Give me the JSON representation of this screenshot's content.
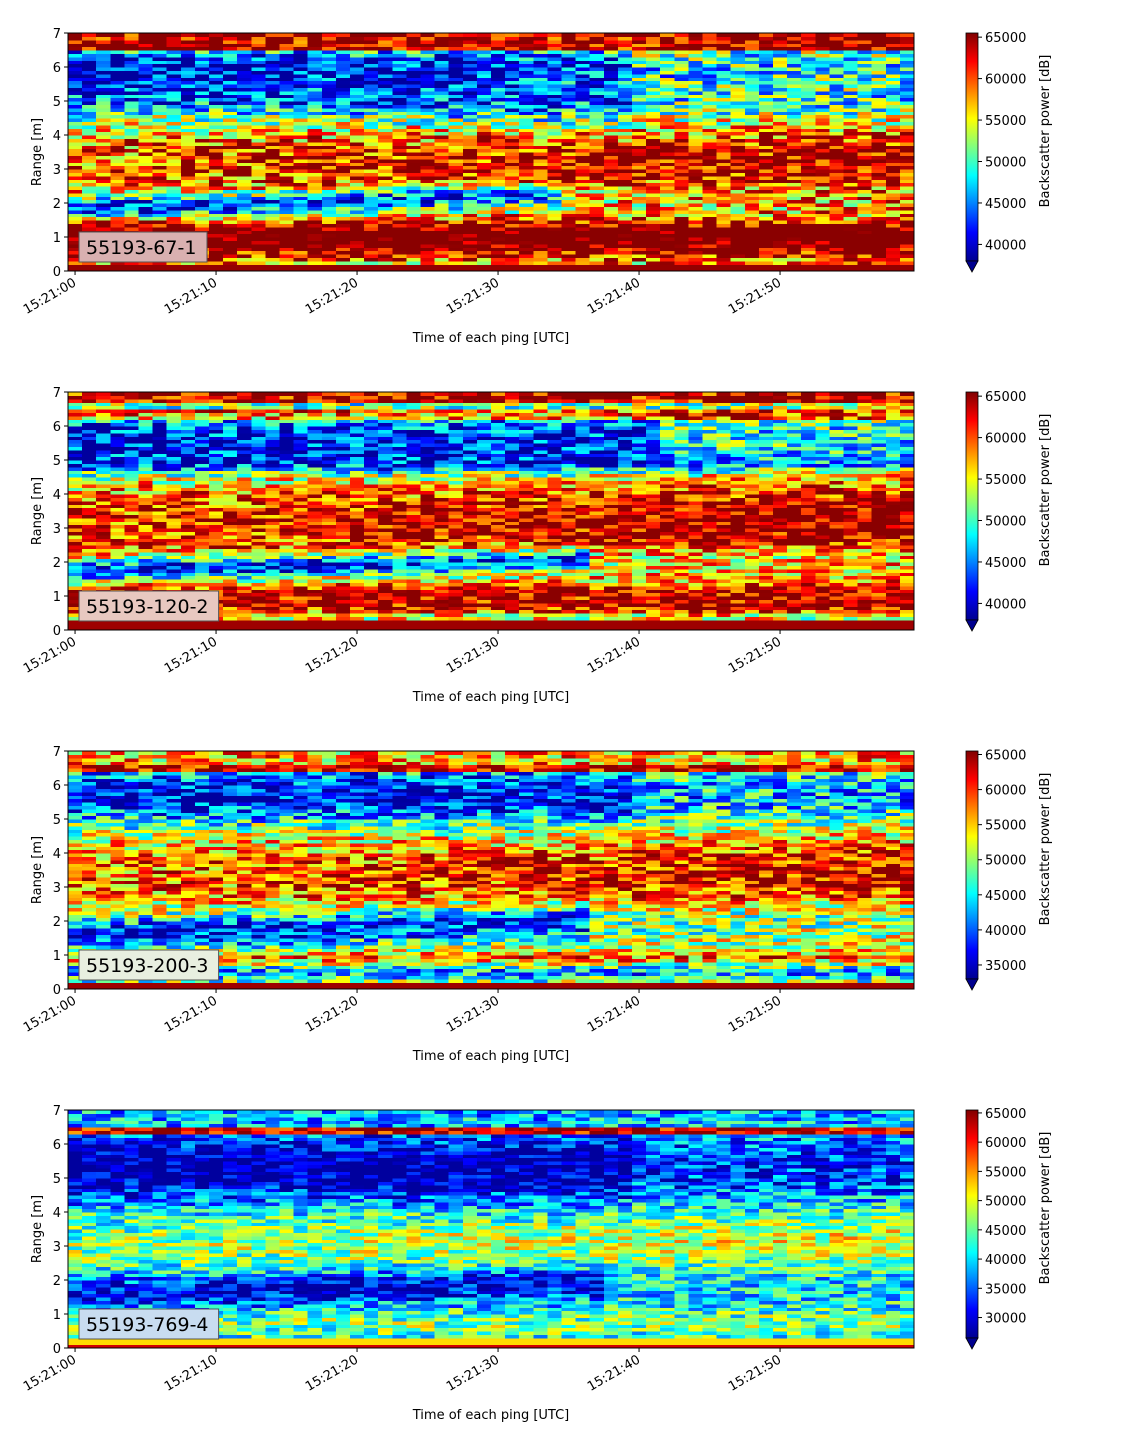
{
  "figure": {
    "ylabel": "Range [m]",
    "xlabel": "Time of each ping [UTC]",
    "colorbar_label": "Backscatter power [dB]",
    "colormap": "jet",
    "xtick_labels": [
      "15:21:00",
      "15:21:10",
      "15:21:20",
      "15:21:30",
      "15:21:40",
      "15:21:50"
    ]
  },
  "chart_data": [
    {
      "type": "heatmap",
      "annotation": "55193-67-1",
      "annotation_box_color": "#d9b0b0",
      "ylim": [
        0,
        7
      ],
      "yticks": [
        0,
        1,
        2,
        3,
        4,
        5,
        6,
        7
      ],
      "xlim_seconds": [
        -0.5,
        59.5
      ],
      "xticks": [
        "15:21:00",
        "15:21:10",
        "15:21:20",
        "15:21:30",
        "15:21:40",
        "15:21:50"
      ],
      "colorbar_range": [
        38000,
        65500
      ],
      "colorbar_ticks": [
        40000,
        45000,
        50000,
        55000,
        60000,
        65000
      ],
      "colorbar_extend": "min",
      "grid": false
    },
    {
      "type": "heatmap",
      "annotation": "55193-120-2",
      "annotation_box_color": "#e8c8c0",
      "ylim": [
        0,
        7
      ],
      "yticks": [
        0,
        1,
        2,
        3,
        4,
        5,
        6,
        7
      ],
      "xlim_seconds": [
        -0.5,
        59.5
      ],
      "xticks": [
        "15:21:00",
        "15:21:10",
        "15:21:20",
        "15:21:30",
        "15:21:40",
        "15:21:50"
      ],
      "colorbar_range": [
        38000,
        65500
      ],
      "colorbar_ticks": [
        40000,
        45000,
        50000,
        55000,
        60000,
        65000
      ],
      "colorbar_extend": "min",
      "grid": false
    },
    {
      "type": "heatmap",
      "annotation": "55193-200-3",
      "annotation_box_color": "#e8efe0",
      "ylim": [
        0,
        7
      ],
      "yticks": [
        0,
        1,
        2,
        3,
        4,
        5,
        6,
        7
      ],
      "xlim_seconds": [
        -0.5,
        59.5
      ],
      "xticks": [
        "15:21:00",
        "15:21:10",
        "15:21:20",
        "15:21:30",
        "15:21:40",
        "15:21:50"
      ],
      "colorbar_range": [
        33000,
        65500
      ],
      "colorbar_ticks": [
        35000,
        40000,
        45000,
        50000,
        55000,
        60000,
        65000
      ],
      "colorbar_extend": "min",
      "grid": false
    },
    {
      "type": "heatmap",
      "annotation": "55193-769-4",
      "annotation_box_color": "#c8dcf0",
      "ylim": [
        0,
        7
      ],
      "yticks": [
        0,
        1,
        2,
        3,
        4,
        5,
        6,
        7
      ],
      "xlim_seconds": [
        -0.5,
        59.5
      ],
      "xticks": [
        "15:21:00",
        "15:21:10",
        "15:21:20",
        "15:21:30",
        "15:21:40",
        "15:21:50"
      ],
      "colorbar_range": [
        26500,
        65500
      ],
      "colorbar_ticks": [
        30000,
        35000,
        40000,
        45000,
        50000,
        55000,
        60000,
        65000
      ],
      "colorbar_extend": "min",
      "grid": false
    }
  ]
}
